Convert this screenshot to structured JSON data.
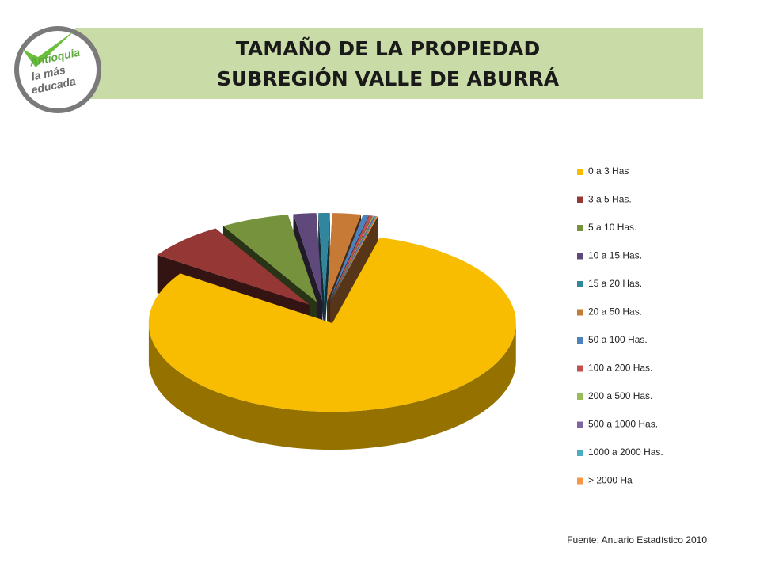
{
  "logo": [
    "Antioquia",
    "la más",
    "educada"
  ],
  "chart_data": {
    "type": "pie",
    "title": "TAMAÑO DE LA PROPIEDAD",
    "subtitle": "SUBREGIÓN VALLE DE ABURRÁ",
    "source": "Fuente: Anuario Estadístico 2010",
    "categories": [
      "0 a 3 Has",
      "3 a 5 Has.",
      "5 a 10 Has.",
      "10 a 15 Has.",
      "15 a 20 Has.",
      "20 a 50 Has.",
      "50 a  100 Has.",
      "100 a 200 Has.",
      "200 a 500 Has.",
      "500 a 1000 Has.",
      "1000 a 2000 Has.",
      "> 2000 Ha"
    ],
    "values": [
      80.3,
      7,
      6,
      2,
      1,
      2.5,
      0.5,
      0.3,
      0.1,
      0.1,
      0.1,
      0.1
    ],
    "colors": [
      "#f8bd00",
      "#953735",
      "#76923c",
      "#5f497a",
      "#31859c",
      "#c77a35",
      "#4f81bd",
      "#c0504d",
      "#9bbb59",
      "#8064a2",
      "#4bacc6",
      "#f79646"
    ],
    "start_angle": 15,
    "legend": "right"
  }
}
